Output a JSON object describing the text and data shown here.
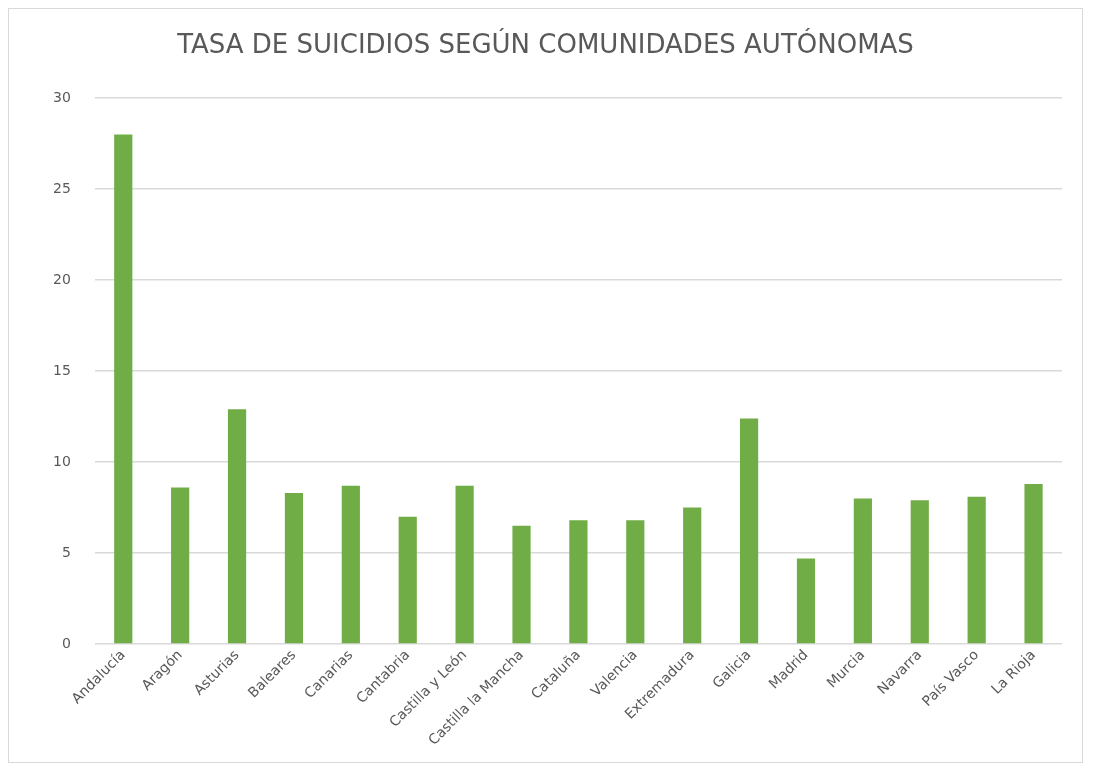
{
  "chart_data": {
    "type": "bar",
    "title": "TASA DE SUICIDIOS SEGÚN COMUNIDADES AUTÓNOMAS",
    "categories": [
      "Andalucía",
      "Aragón",
      "Asturias",
      "Baleares",
      "Canarias",
      "Cantabria",
      "Castilla y León",
      "Castilla la Mancha",
      "Cataluña",
      "Valencia",
      "Extremadura",
      "Galicia",
      "Madrid",
      "Murcia",
      "Navarra",
      "País Vasco",
      "La Rioja"
    ],
    "values": [
      28,
      8.6,
      12.9,
      8.3,
      8.7,
      7.0,
      8.7,
      6.5,
      6.8,
      6.8,
      7.5,
      12.4,
      4.7,
      8.0,
      7.9,
      8.1,
      8.8
    ],
    "color": "#70ad47",
    "ylim": [
      0,
      30
    ],
    "yticks": [
      0,
      5,
      10,
      15,
      20,
      25,
      30
    ],
    "grid": "y"
  }
}
